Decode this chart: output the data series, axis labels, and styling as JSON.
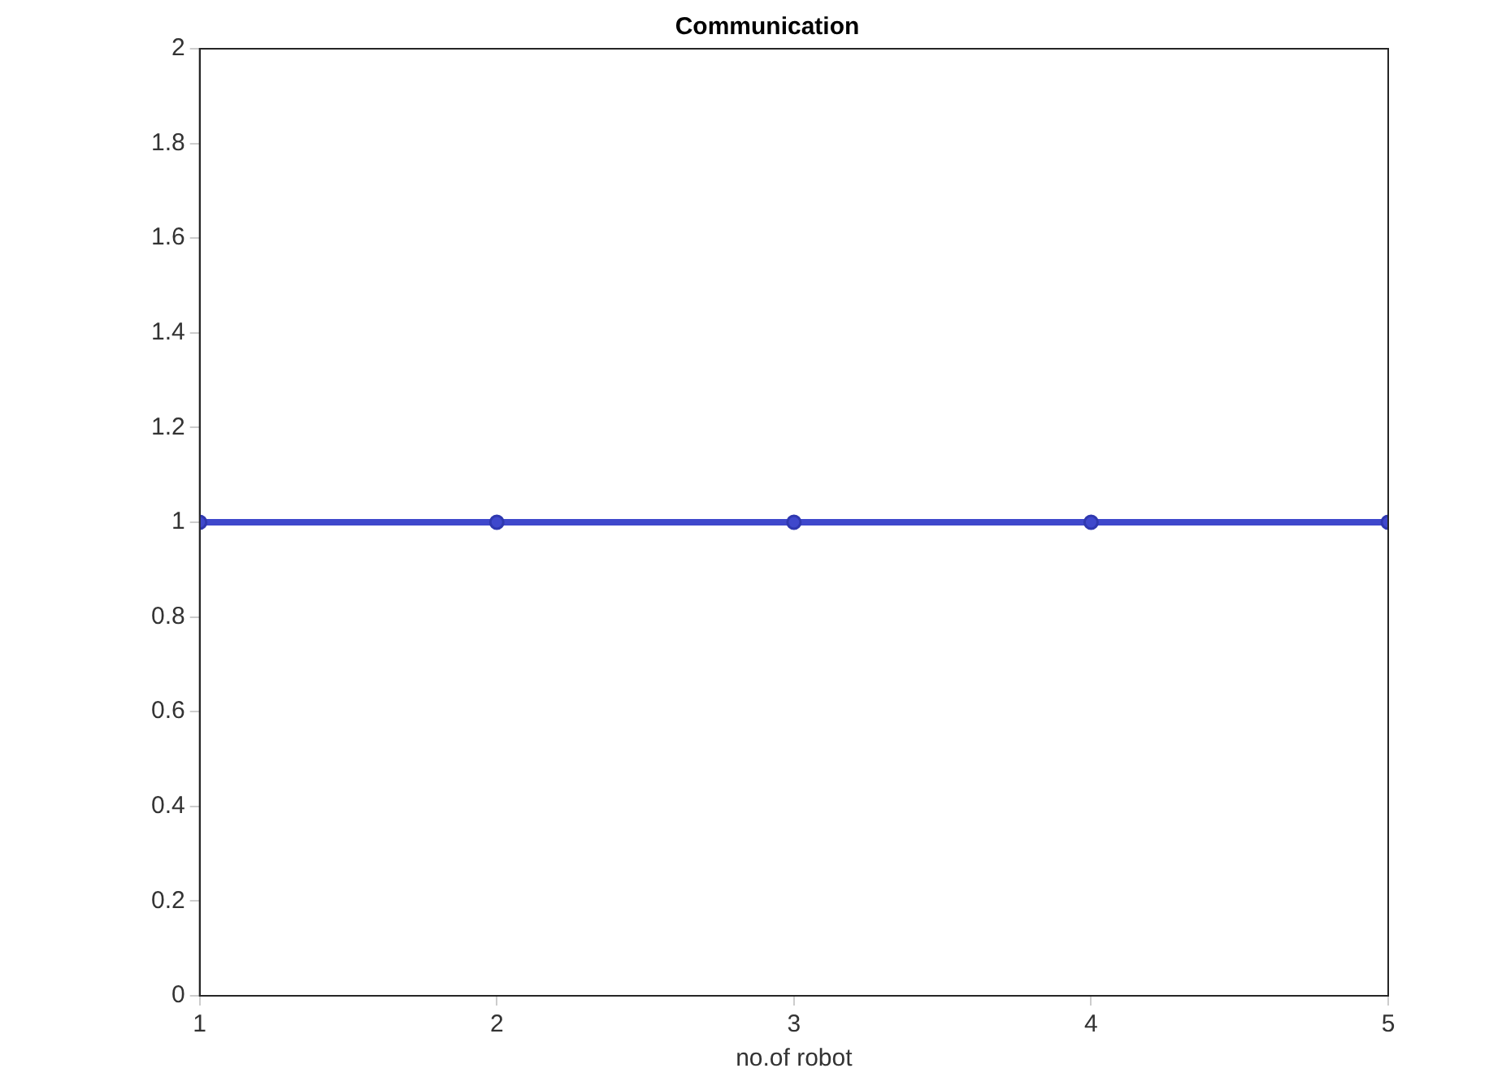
{
  "chart_data": {
    "type": "line",
    "title": "Communication",
    "xlabel": "no.of robot",
    "x": [
      1,
      2,
      3,
      4,
      5
    ],
    "series": [
      {
        "color": "#3f48cc",
        "values": [
          1,
          1,
          1,
          1,
          1
        ]
      }
    ],
    "xlim": [
      1,
      5
    ],
    "xticks": [
      1,
      2,
      3,
      4,
      5
    ],
    "ylim": [
      0,
      2
    ],
    "yticks": [
      0,
      0.2,
      0.4,
      0.6,
      0.8,
      1,
      1.2,
      1.4,
      1.6,
      1.8,
      2
    ],
    "legend": false,
    "marker": "circle",
    "line_style": "solid"
  }
}
